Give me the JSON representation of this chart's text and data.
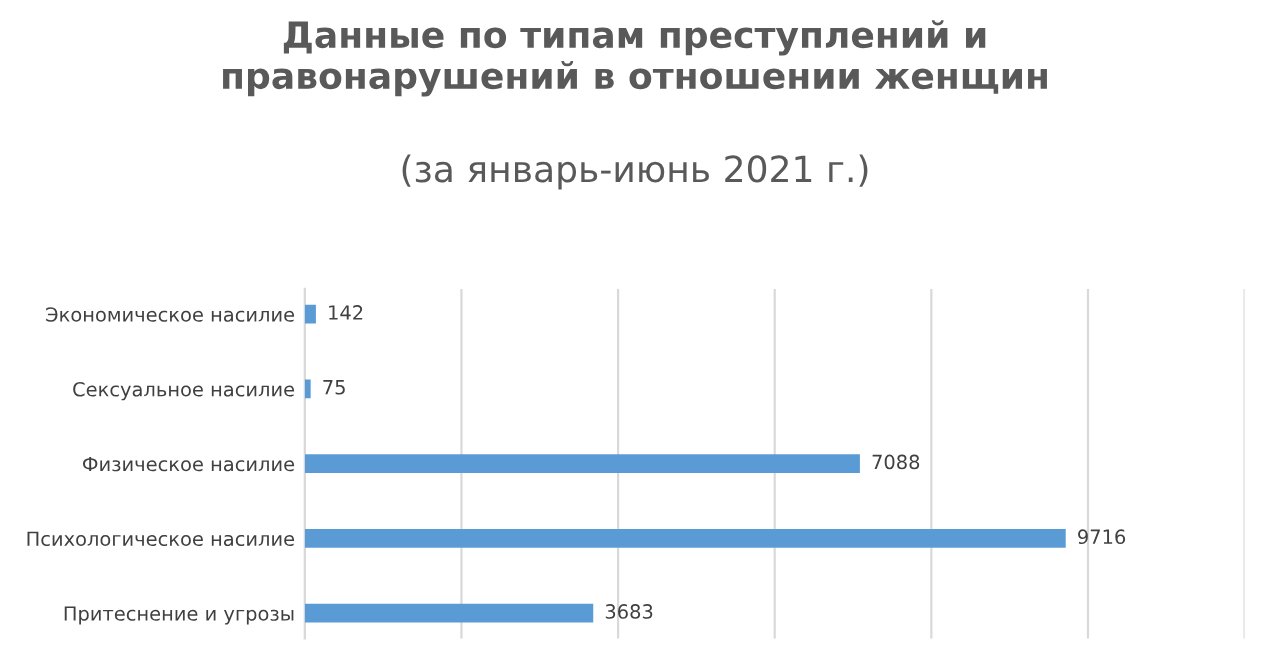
{
  "chart_data": {
    "type": "bar",
    "orientation": "horizontal",
    "title": "Данные по типам преступлений и\nправонарушений в отношении женщин",
    "subtitle": "(за январь-июнь 2021 г.)",
    "categories": [
      "Экономическое насилие",
      "Сексуальное насилие",
      "Физическое насилие",
      "Психологическое насилие",
      "Притеснение и угрозы"
    ],
    "values": [
      142,
      75,
      7088,
      9716,
      3683
    ],
    "color": "#5b9bd5",
    "xlim": [
      0,
      12000
    ],
    "xticks": [
      {
        "value": 0,
        "label": null
      },
      {
        "value": 2000,
        "label": null
      },
      {
        "value": 4000,
        "label": null
      },
      {
        "value": 6000,
        "label": null
      },
      {
        "value": 8000,
        "label": null
      },
      {
        "value": 10000,
        "label": null
      },
      {
        "value": 12000,
        "label": null
      }
    ],
    "grid": "x",
    "tick_labels": "y",
    "data_labels": true,
    "legend": false
  }
}
